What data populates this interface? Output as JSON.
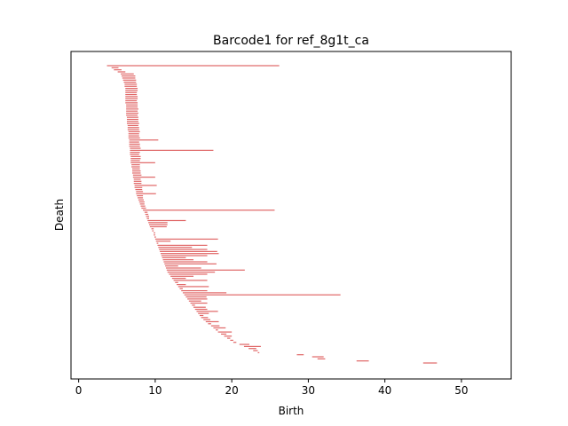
{
  "chart_data": {
    "type": "barcode",
    "title": "Barcode1 for ref_8g1t_ca",
    "xlabel": "Birth",
    "ylabel": "Death",
    "xlim": [
      -1,
      56.5
    ],
    "xticks": [
      0,
      10,
      20,
      30,
      40,
      50
    ],
    "yticks_shown": false,
    "grid": false,
    "legend": "none",
    "bar_color": "#e06666",
    "intervals": [
      [
        3.7,
        26.2
      ],
      [
        4.3,
        5.2
      ],
      [
        4.6,
        5.6
      ],
      [
        5.1,
        6.1
      ],
      [
        5.5,
        7.2
      ],
      [
        5.6,
        7.4
      ],
      [
        5.7,
        7.4
      ],
      [
        5.8,
        7.5
      ],
      [
        5.9,
        7.5
      ],
      [
        6.0,
        7.6
      ],
      [
        6.0,
        7.6
      ],
      [
        6.1,
        7.7
      ],
      [
        6.1,
        7.7
      ],
      [
        6.1,
        7.6
      ],
      [
        6.1,
        7.6
      ],
      [
        6.1,
        7.7
      ],
      [
        6.1,
        7.7
      ],
      [
        6.1,
        7.6
      ],
      [
        6.1,
        7.7
      ],
      [
        6.2,
        7.7
      ],
      [
        6.2,
        7.7
      ],
      [
        6.2,
        7.8
      ],
      [
        6.2,
        7.7
      ],
      [
        6.2,
        7.8
      ],
      [
        6.2,
        7.7
      ],
      [
        6.3,
        7.8
      ],
      [
        6.3,
        7.8
      ],
      [
        6.3,
        7.8
      ],
      [
        6.3,
        7.9
      ],
      [
        6.4,
        7.8
      ],
      [
        6.4,
        7.9
      ],
      [
        6.4,
        7.9
      ],
      [
        6.5,
        8.0
      ],
      [
        6.5,
        7.9
      ],
      [
        6.5,
        7.9
      ],
      [
        6.5,
        8.0
      ],
      [
        6.6,
        10.4
      ],
      [
        6.6,
        7.9
      ],
      [
        6.6,
        8.0
      ],
      [
        6.6,
        8.0
      ],
      [
        6.7,
        8.1
      ],
      [
        6.7,
        17.6
      ],
      [
        6.7,
        8.0
      ],
      [
        6.7,
        7.9
      ],
      [
        6.8,
        8.1
      ],
      [
        6.8,
        8.1
      ],
      [
        6.8,
        8.0
      ],
      [
        6.8,
        10.0
      ],
      [
        6.9,
        8.0
      ],
      [
        6.9,
        8.0
      ],
      [
        7.0,
        8.0
      ],
      [
        7.0,
        8.1
      ],
      [
        7.0,
        8.1
      ],
      [
        7.1,
        8.2
      ],
      [
        7.1,
        10.0
      ],
      [
        7.2,
        8.1
      ],
      [
        7.2,
        8.2
      ],
      [
        7.2,
        8.2
      ],
      [
        7.3,
        10.2
      ],
      [
        7.3,
        8.3
      ],
      [
        7.4,
        8.3
      ],
      [
        7.5,
        8.4
      ],
      [
        7.5,
        10.1
      ],
      [
        7.6,
        8.4
      ],
      [
        7.7,
        8.4
      ],
      [
        7.8,
        8.5
      ],
      [
        7.9,
        8.6
      ],
      [
        8.0,
        8.6
      ],
      [
        8.1,
        8.7
      ],
      [
        8.2,
        8.8
      ],
      [
        8.4,
        25.6
      ],
      [
        8.6,
        9.0
      ],
      [
        8.7,
        9.1
      ],
      [
        8.8,
        9.2
      ],
      [
        8.9,
        9.2
      ],
      [
        9.0,
        14.0
      ],
      [
        9.1,
        11.6
      ],
      [
        9.2,
        11.6
      ],
      [
        9.3,
        11.5
      ],
      [
        9.5,
        9.8
      ],
      [
        9.6,
        9.8
      ],
      [
        9.8,
        10.0
      ],
      [
        9.8,
        10.0
      ],
      [
        9.9,
        10.1
      ],
      [
        10.0,
        18.2
      ],
      [
        10.1,
        12.0
      ],
      [
        10.2,
        10.4
      ],
      [
        10.3,
        16.8
      ],
      [
        10.4,
        14.8
      ],
      [
        10.5,
        16.8
      ],
      [
        10.6,
        18.1
      ],
      [
        10.7,
        18.3
      ],
      [
        10.8,
        16.8
      ],
      [
        10.9,
        14.0
      ],
      [
        11.0,
        15.0
      ],
      [
        11.1,
        16.8
      ],
      [
        11.2,
        18.0
      ],
      [
        11.3,
        13.0
      ],
      [
        11.4,
        16.0
      ],
      [
        11.5,
        21.7
      ],
      [
        11.6,
        17.8
      ],
      [
        11.8,
        16.8
      ],
      [
        12.0,
        15.0
      ],
      [
        12.2,
        14.0
      ],
      [
        12.4,
        16.8
      ],
      [
        12.6,
        13.0
      ],
      [
        12.8,
        14.0
      ],
      [
        13.0,
        17.0
      ],
      [
        13.2,
        13.6
      ],
      [
        13.4,
        16.8
      ],
      [
        13.6,
        19.3
      ],
      [
        13.8,
        34.2
      ],
      [
        14.0,
        16.7
      ],
      [
        14.2,
        16.8
      ],
      [
        14.4,
        16.0
      ],
      [
        14.6,
        16.8
      ],
      [
        14.8,
        15.2
      ],
      [
        15.0,
        16.6
      ],
      [
        15.2,
        16.8
      ],
      [
        15.4,
        18.2
      ],
      [
        15.6,
        17.0
      ],
      [
        15.8,
        16.3
      ],
      [
        16.0,
        16.9
      ],
      [
        16.3,
        17.2
      ],
      [
        16.6,
        18.3
      ],
      [
        16.9,
        17.3
      ],
      [
        17.3,
        18.4
      ],
      [
        17.6,
        19.2
      ],
      [
        17.9,
        18.2
      ],
      [
        18.2,
        20.0
      ],
      [
        18.6,
        19.3
      ],
      [
        19.0,
        20.0
      ],
      [
        19.4,
        19.8
      ],
      [
        19.8,
        20.2
      ],
      [
        20.2,
        20.6
      ],
      [
        21.0,
        22.3
      ],
      [
        21.6,
        23.8
      ],
      [
        22.2,
        23.2
      ],
      [
        22.8,
        23.4
      ],
      [
        23.4,
        23.6
      ],
      [
        28.5,
        29.4
      ],
      [
        30.5,
        32.0
      ],
      [
        31.2,
        32.2
      ],
      [
        36.3,
        37.9
      ],
      [
        45.0,
        46.8
      ]
    ]
  }
}
